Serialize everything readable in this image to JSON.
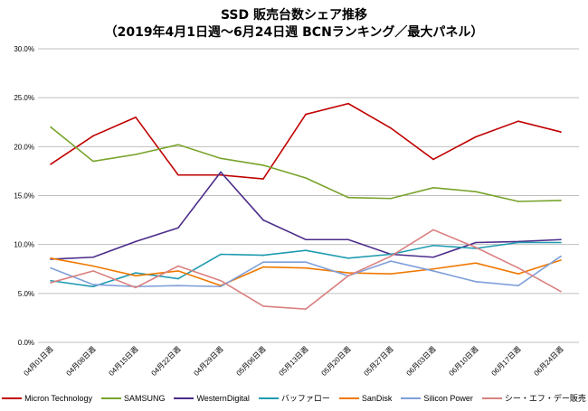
{
  "chart_data": {
    "type": "line",
    "title": "SSD 販売台数シェア推移",
    "subtitle": "（2019年4月1日週～6月24日週 BCNランキング／最大パネル）",
    "xlabel": "",
    "ylabel": "",
    "ylim": [
      0,
      30
    ],
    "yticks": [
      "0.0%",
      "5.0%",
      "10.0%",
      "15.0%",
      "20.0%",
      "25.0%",
      "30.0%"
    ],
    "grid": true,
    "legend_position": "bottom",
    "categories": [
      "04月01日週",
      "04月08日週",
      "04月15日週",
      "04月22日週",
      "04月29日週",
      "05月06日週",
      "05月13日週",
      "05月20日週",
      "05月27日週",
      "06月03日週",
      "06月10日週",
      "06月17日週",
      "06月24日週"
    ],
    "series": [
      {
        "name": "Micron Technology",
        "color": "#C00000",
        "values": [
          18.2,
          21.1,
          23.0,
          17.1,
          17.1,
          16.7,
          23.3,
          24.4,
          21.9,
          18.7,
          21.0,
          22.6,
          21.5
        ]
      },
      {
        "name": "SAMSUNG",
        "color": "#77A32A",
        "values": [
          22.0,
          18.5,
          19.2,
          20.2,
          18.8,
          18.1,
          16.8,
          14.8,
          14.7,
          15.8,
          15.4,
          14.4,
          14.5
        ]
      },
      {
        "name": "WesternDigital",
        "color": "#4B2C8A",
        "values": [
          8.5,
          8.7,
          10.3,
          11.7,
          17.4,
          12.5,
          10.5,
          10.5,
          9.0,
          8.7,
          10.2,
          10.3,
          10.5
        ]
      },
      {
        "name": "バッファロー",
        "color": "#1E9BB0",
        "values": [
          6.3,
          5.7,
          7.1,
          6.5,
          9.0,
          8.9,
          9.4,
          8.6,
          9.0,
          9.9,
          9.6,
          10.2,
          10.2
        ]
      },
      {
        "name": "SanDisk",
        "color": "#F07800",
        "values": [
          8.6,
          7.8,
          6.8,
          7.3,
          5.8,
          7.7,
          7.6,
          7.1,
          7.0,
          7.5,
          8.1,
          7.0,
          8.4
        ]
      },
      {
        "name": "Silicon Power",
        "color": "#7F9FD9",
        "values": [
          7.6,
          5.9,
          5.7,
          5.8,
          5.7,
          8.2,
          8.2,
          6.8,
          8.3,
          7.3,
          6.2,
          5.8,
          8.8
        ]
      },
      {
        "name": "シー・エフ・デー販売",
        "color": "#DA8080",
        "values": [
          6.1,
          7.3,
          5.6,
          7.8,
          6.3,
          3.7,
          3.4,
          6.8,
          8.8,
          11.5,
          9.7,
          7.6,
          5.2
        ]
      }
    ]
  }
}
